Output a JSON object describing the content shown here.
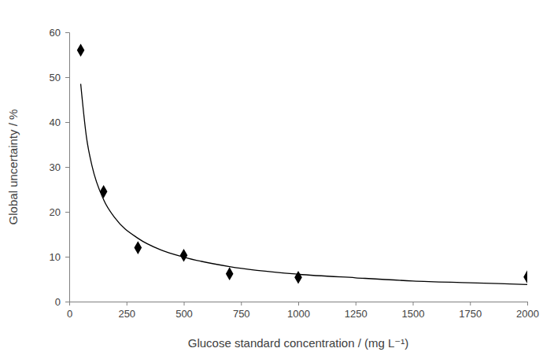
{
  "chart_data": {
    "type": "scatter",
    "x_label": "Glucose standard concentration / (mg L⁻¹)",
    "y_label": "Global uncertainty / %",
    "xlim": [
      0,
      2000
    ],
    "xticks": [
      0,
      250,
      500,
      750,
      1000,
      1250,
      1500,
      1750,
      2000
    ],
    "ylim": [
      0,
      60
    ],
    "yticks": [
      0,
      10,
      20,
      30,
      40,
      50,
      60
    ],
    "grid": false,
    "series": [
      {
        "type": "scatter",
        "marker": "diamond",
        "color": "#000000",
        "x": [
          50,
          150,
          300,
          500,
          700,
          1000,
          2000
        ],
        "values": [
          56,
          24.5,
          12,
          10.3,
          6.2,
          5.4,
          5.5
        ]
      },
      {
        "type": "line",
        "line_style": "solid",
        "color": "#000000",
        "x": [
          50,
          75,
          100,
          150,
          200,
          300,
          400,
          500,
          700,
          1000,
          1250,
          1500,
          1750,
          2000
        ],
        "values": [
          48.5,
          36.7,
          30.1,
          22.7,
          18.6,
          14.1,
          11.5,
          9.9,
          7.8,
          6.1,
          5.3,
          4.6,
          4.2,
          3.8
        ]
      }
    ]
  }
}
